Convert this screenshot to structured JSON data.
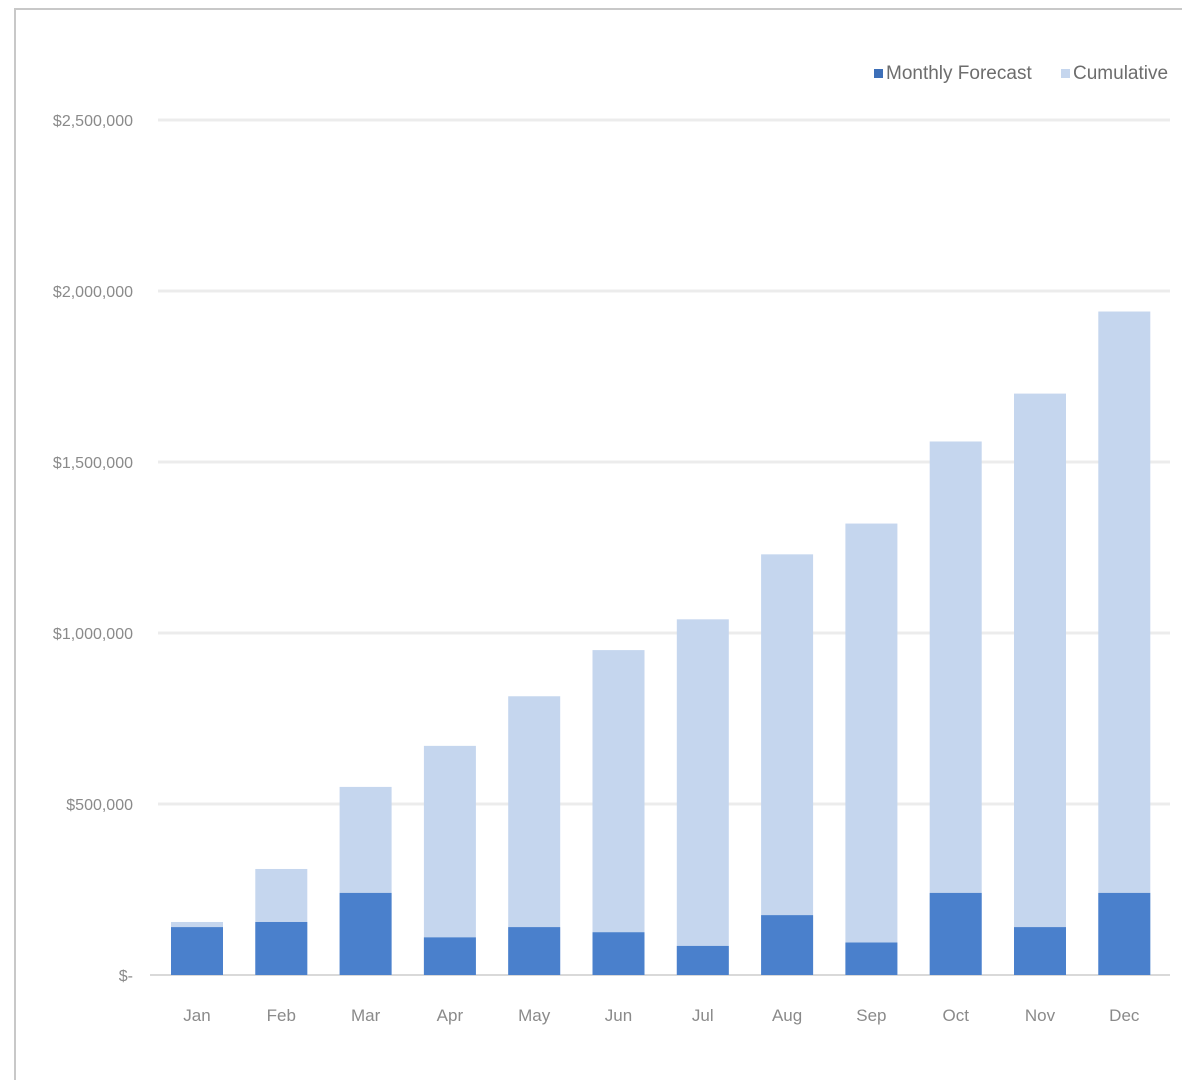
{
  "chart_data": {
    "type": "bar",
    "categories": [
      "Jan",
      "Feb",
      "Mar",
      "Apr",
      "May",
      "Jun",
      "Jul",
      "Aug",
      "Sep",
      "Oct",
      "Nov",
      "Dec"
    ],
    "series": [
      {
        "name": "Cumulative",
        "values": [
          155000,
          310000,
          550000,
          670000,
          815000,
          950000,
          1040000,
          1230000,
          1320000,
          1560000,
          1700000,
          1940000
        ],
        "color": "#c5d6ee"
      },
      {
        "name": "Monthly Forecast",
        "values": [
          140000,
          155000,
          240000,
          110000,
          140000,
          125000,
          85000,
          175000,
          95000,
          240000,
          140000,
          240000
        ],
        "color": "#4a80cc"
      }
    ],
    "overlap": true,
    "yticks": [
      {
        "value": 0,
        "label": "$-"
      },
      {
        "value": 500000,
        "label": "$500,000"
      },
      {
        "value": 1000000,
        "label": "$1,000,000"
      },
      {
        "value": 1500000,
        "label": "$1,500,000"
      },
      {
        "value": 2000000,
        "label": "$2,000,000"
      },
      {
        "value": 2500000,
        "label": "$2,500,000"
      }
    ],
    "ylim": [
      0,
      2500000
    ],
    "grid": true,
    "legend_position": "top-right",
    "title": "",
    "xlabel": "",
    "ylabel": ""
  },
  "legend": {
    "items": [
      {
        "label": "Monthly Forecast",
        "color": "#3d6fb8"
      },
      {
        "label": "Cumulative",
        "color": "#c5d6ee"
      }
    ]
  }
}
